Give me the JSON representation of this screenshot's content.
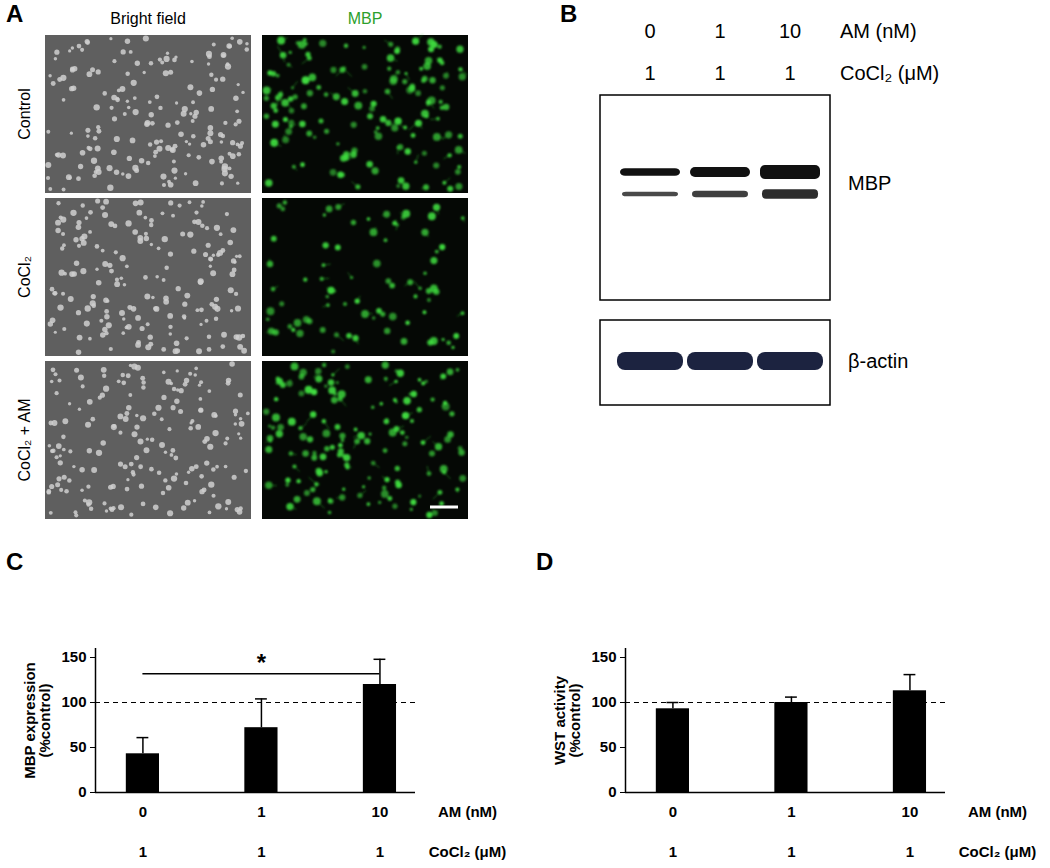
{
  "figure": {
    "panel_A": {
      "letter": "A",
      "columns": [
        "Bright field",
        "MBP"
      ],
      "rows": [
        "Control",
        "CoCl₂",
        "CoCl₂ + AM"
      ]
    },
    "panel_B": {
      "letter": "B",
      "lane_rows": [
        {
          "values": [
            "0",
            "1",
            "10"
          ],
          "label": "AM (nM)"
        },
        {
          "values": [
            "1",
            "1",
            "1"
          ],
          "label": "CoCl₂ (μM)"
        }
      ],
      "blots": [
        "MBP",
        "β-actin"
      ]
    }
  },
  "chart_data": [
    {
      "panel": "C",
      "type": "bar",
      "categories": [
        "0",
        "1",
        "10"
      ],
      "x_label": "AM (nM)",
      "second_row": {
        "labels": [
          "1",
          "1",
          "1"
        ],
        "label": "CoCl₂ (μM)"
      },
      "y_label": "MBP expression\n(%control)",
      "values": [
        43,
        72,
        120
      ],
      "errors": [
        18,
        32,
        28
      ],
      "color": "#000000",
      "ylim": [
        0,
        160
      ],
      "yticks": [
        0,
        50,
        100,
        150
      ],
      "reference_line": {
        "value": 100,
        "line_style": "dashed"
      },
      "annotations": [
        {
          "from": "0",
          "to": "10",
          "y": 132,
          "text": "*"
        }
      ]
    },
    {
      "panel": "D",
      "type": "bar",
      "categories": [
        "0",
        "1",
        "10"
      ],
      "x_label": "AM (nM)",
      "second_row": {
        "labels": [
          "1",
          "1",
          "1"
        ],
        "label": "CoCl₂ (μM)"
      },
      "y_label": "WST activity\n(%control)",
      "values": [
        93,
        100,
        113
      ],
      "errors": [
        7,
        6,
        18
      ],
      "color": "#000000",
      "ylim": [
        0,
        160
      ],
      "yticks": [
        0,
        50,
        100,
        150
      ],
      "reference_line": {
        "value": 100,
        "line_style": "dashed"
      },
      "annotations": []
    }
  ]
}
